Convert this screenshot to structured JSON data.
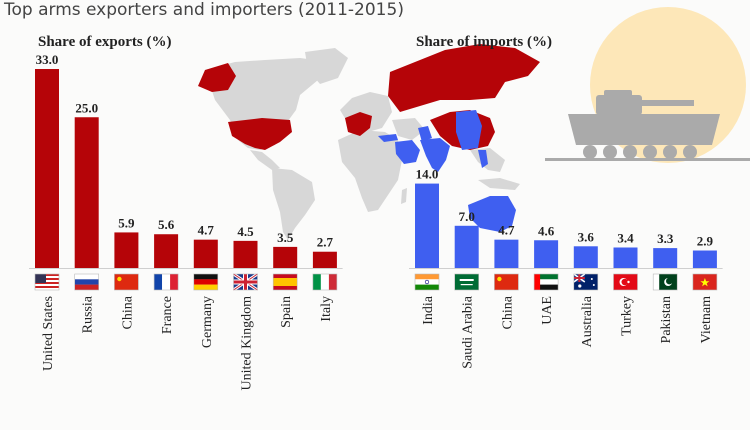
{
  "title": "Top arms exporters and importers (2011-2015)",
  "colors": {
    "exports": "#b50408",
    "imports": "#3f5ff0",
    "map_gray": "#d7d7d7",
    "sun": "#fde7b8",
    "tank": "#aaaaaa",
    "background": "#fbfbfa"
  },
  "chart_data": [
    {
      "type": "bar",
      "title": "Share of exports (%)",
      "categories": [
        "United States",
        "Russia",
        "China",
        "France",
        "Germany",
        "United Kingdom",
        "Spain",
        "Italy"
      ],
      "values": [
        33.0,
        25.0,
        5.9,
        5.6,
        4.7,
        4.5,
        3.5,
        2.7
      ],
      "value_labels": [
        "33.0",
        "25.0",
        "5.9",
        "5.6",
        "4.7",
        "4.5",
        "3.5",
        "2.7"
      ],
      "flags": [
        "us-flag-icon",
        "russia-flag-icon",
        "china-flag-icon",
        "france-flag-icon",
        "germany-flag-icon",
        "uk-flag-icon",
        "spain-flag-icon",
        "italy-flag-icon"
      ],
      "color": "#b50408"
    },
    {
      "type": "bar",
      "title": "Share of imports (%)",
      "categories": [
        "India",
        "Saudi Arabia",
        "China",
        "UAE",
        "Australia",
        "Turkey",
        "Pakistan",
        "Vietnam"
      ],
      "values": [
        14.0,
        7.0,
        4.7,
        4.6,
        3.6,
        3.4,
        3.3,
        2.9
      ],
      "value_labels": [
        "14.0",
        "7.0",
        "4.7",
        "4.6",
        "3.6",
        "3.4",
        "3.3",
        "2.9"
      ],
      "flags": [
        "india-flag-icon",
        "saudi-arabia-flag-icon",
        "china-flag-icon",
        "uae-flag-icon",
        "australia-flag-icon",
        "turkey-flag-icon",
        "pakistan-flag-icon",
        "vietnam-flag-icon"
      ],
      "color": "#3f5ff0"
    }
  ]
}
